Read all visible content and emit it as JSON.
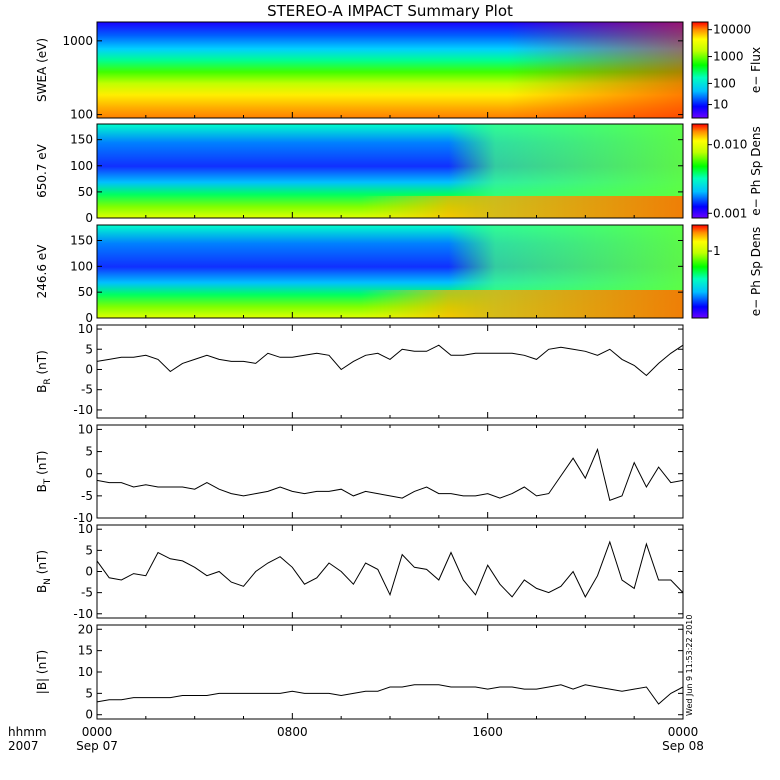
{
  "chart_data": [
    {
      "type": "heatmap",
      "title": "STEREO-A IMPACT Summary Plot",
      "ylabel": "SWEA (eV)",
      "y_scale": "log",
      "ylim": [
        90,
        1800
      ],
      "ytick_labels": [
        "1000",
        "100"
      ],
      "colorbar": {
        "label": "e− Flux",
        "scale": "log",
        "tick_labels": [
          "10000",
          "1000",
          "100",
          "10"
        ]
      },
      "description_values": {
        "x_hours": [
          0,
          24
        ]
      }
    },
    {
      "type": "heatmap",
      "ylabel": "650.7 eV",
      "ylim": [
        0,
        180
      ],
      "ytick_labels": [
        "150",
        "100",
        "50",
        "0"
      ],
      "colorbar": {
        "label": "e− Ph Sp Dens",
        "scale": "log",
        "tick_labels": [
          "0.010",
          "0.001"
        ]
      }
    },
    {
      "type": "heatmap",
      "ylabel": "246.6 eV",
      "ylim": [
        0,
        180
      ],
      "ytick_labels": [
        "150",
        "100",
        "50",
        "0"
      ],
      "colorbar": {
        "label": "e− Ph Sp Dens",
        "scale": "log",
        "tick_labels": [
          "1"
        ]
      }
    },
    {
      "type": "line",
      "ylabel_main": "B",
      "ylabel_sub": "R",
      "ylabel_unit": "(nT)",
      "ylim": [
        -12,
        11
      ],
      "ytick_labels": [
        "10",
        "5",
        "0",
        "-5",
        "-10"
      ],
      "x_hours": [
        0,
        0.5,
        1,
        1.5,
        2,
        2.5,
        3,
        3.5,
        4,
        4.5,
        5,
        5.5,
        6,
        6.5,
        7,
        7.5,
        8,
        8.5,
        9,
        9.5,
        10,
        10.5,
        11,
        11.5,
        12,
        12.5,
        13,
        13.5,
        14,
        14.5,
        15,
        15.5,
        16,
        16.5,
        17,
        17.5,
        18,
        18.5,
        19,
        19.5,
        20,
        20.5,
        21,
        21.5,
        22,
        22.5,
        23,
        23.5,
        24
      ],
      "y": [
        2,
        2.5,
        3,
        3,
        3.5,
        2.5,
        -0.5,
        1.5,
        2.5,
        3.5,
        2.5,
        2,
        2,
        1.5,
        4,
        3,
        3,
        3.5,
        4,
        3.5,
        0,
        2,
        3.5,
        4,
        2.5,
        5,
        4.5,
        4.5,
        6,
        3.5,
        3.5,
        4,
        4,
        4,
        4,
        3.5,
        2.5,
        5,
        5.5,
        5,
        4.5,
        3.5,
        5,
        2.5,
        1,
        -1.5,
        1.5,
        4,
        6
      ]
    },
    {
      "type": "line",
      "ylabel_main": "B",
      "ylabel_sub": "T",
      "ylabel_unit": "(nT)",
      "ylim": [
        -10,
        11
      ],
      "ytick_labels": [
        "10",
        "5",
        "0",
        "-5",
        "-10"
      ],
      "x_hours": [
        0,
        0.5,
        1,
        1.5,
        2,
        2.5,
        3,
        3.5,
        4,
        4.5,
        5,
        5.5,
        6,
        6.5,
        7,
        7.5,
        8,
        8.5,
        9,
        9.5,
        10,
        10.5,
        11,
        11.5,
        12,
        12.5,
        13,
        13.5,
        14,
        14.5,
        15,
        15.5,
        16,
        16.5,
        17,
        17.5,
        18,
        18.5,
        19,
        19.5,
        20,
        20.5,
        21,
        21.5,
        22,
        22.5,
        23,
        23.5,
        24
      ],
      "y": [
        -1.5,
        -2,
        -2,
        -3,
        -2.5,
        -3,
        -3,
        -3,
        -3.5,
        -2,
        -3.5,
        -4.5,
        -5,
        -4.5,
        -4,
        -3,
        -4,
        -4.5,
        -4,
        -4,
        -3.5,
        -5,
        -4,
        -4.5,
        -5,
        -5.5,
        -4,
        -3,
        -4.5,
        -4.5,
        -5,
        -5,
        -4.5,
        -5.5,
        -4.5,
        -3,
        -5,
        -4.5,
        -0.5,
        3.5,
        -1,
        5.5,
        -6,
        -5,
        2.5,
        -3,
        1.5,
        -2,
        -1.5
      ]
    },
    {
      "type": "line",
      "ylabel_main": "B",
      "ylabel_sub": "N",
      "ylabel_unit": "(nT)",
      "ylim": [
        -11,
        11
      ],
      "ytick_labels": [
        "10",
        "5",
        "0",
        "-5",
        "-10"
      ],
      "x_hours": [
        0,
        0.5,
        1,
        1.5,
        2,
        2.5,
        3,
        3.5,
        4,
        4.5,
        5,
        5.5,
        6,
        6.5,
        7,
        7.5,
        8,
        8.5,
        9,
        9.5,
        10,
        10.5,
        11,
        11.5,
        12,
        12.5,
        13,
        13.5,
        14,
        14.5,
        15,
        15.5,
        16,
        16.5,
        17,
        17.5,
        18,
        18.5,
        19,
        19.5,
        20,
        20.5,
        21,
        21.5,
        22,
        22.5,
        23,
        23.5,
        24
      ],
      "y": [
        2.5,
        -1.5,
        -2,
        -0.5,
        -1,
        4.5,
        3,
        2.5,
        1,
        -1,
        0,
        -2.5,
        -3.5,
        0,
        2,
        3.5,
        1,
        -3,
        -1.5,
        2,
        0,
        -3,
        2,
        0.5,
        -5.5,
        4,
        1,
        0.5,
        -2,
        4.5,
        -2,
        -5.5,
        1.5,
        -3,
        -6,
        -2,
        -4,
        -5,
        -3.5,
        0,
        -6,
        -1,
        7,
        -2,
        -4,
        6.5,
        -2,
        -2,
        -5
      ]
    },
    {
      "type": "line",
      "ylabel": "|B| (nT)",
      "ylim": [
        -1,
        21
      ],
      "ytick_labels": [
        "20",
        "15",
        "10",
        "5",
        "0"
      ],
      "x_hours": [
        0,
        0.5,
        1,
        1.5,
        2,
        2.5,
        3,
        3.5,
        4,
        4.5,
        5,
        5.5,
        6,
        6.5,
        7,
        7.5,
        8,
        8.5,
        9,
        9.5,
        10,
        10.5,
        11,
        11.5,
        12,
        12.5,
        13,
        13.5,
        14,
        14.5,
        15,
        15.5,
        16,
        16.5,
        17,
        17.5,
        18,
        18.5,
        19,
        19.5,
        20,
        20.5,
        21,
        21.5,
        22,
        22.5,
        23,
        23.5,
        24
      ],
      "y": [
        3,
        3.5,
        3.5,
        4,
        4,
        4,
        4,
        4.5,
        4.5,
        4.5,
        5,
        5,
        5,
        5,
        5,
        5,
        5.5,
        5,
        5,
        5,
        4.5,
        5,
        5.5,
        5.5,
        6.5,
        6.5,
        7,
        7,
        7,
        6.5,
        6.5,
        6.5,
        6,
        6.5,
        6.5,
        6,
        6,
        6.5,
        7,
        6,
        7,
        6.5,
        6,
        5.5,
        6,
        6.5,
        2.5,
        5,
        6.5
      ]
    }
  ],
  "x_axis": {
    "corner_label_top": "hhmm",
    "corner_label_bottom": "2007",
    "tick_labels": [
      "0000",
      "0800",
      "1600",
      "0000"
    ],
    "date_labels": [
      "Sep 07",
      "Sep 08"
    ]
  },
  "timestamp": "Wed Jun 9 11:53:22 2010"
}
